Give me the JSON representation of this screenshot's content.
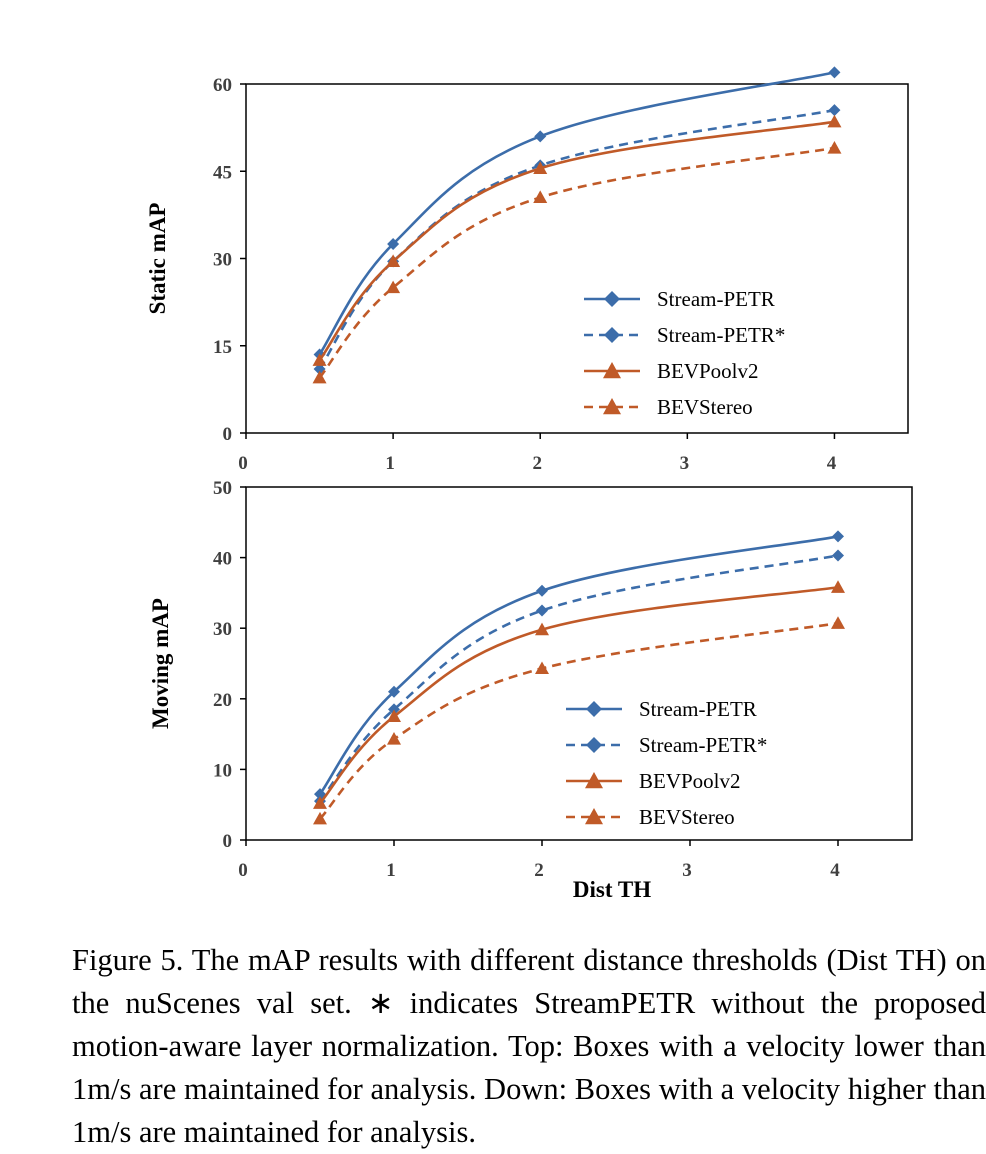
{
  "chart_data": [
    {
      "type": "line",
      "ylabel": "Static mAP",
      "xlabel": "",
      "xlim": [
        0,
        4.5
      ],
      "ylim": [
        0,
        60
      ],
      "xticks": [
        0,
        1,
        2,
        3,
        4
      ],
      "yticks": [
        0,
        15,
        30,
        45,
        60
      ],
      "legend_position": "bottom-right",
      "series": [
        {
          "name": "Stream-PETR",
          "x": [
            0.5,
            1,
            2,
            4
          ],
          "values": [
            13.5,
            32.5,
            51,
            62
          ],
          "color": "#3C6DAA",
          "marker": "diamond",
          "dashed": false
        },
        {
          "name": "Stream-PETR*",
          "x": [
            0.5,
            1,
            2,
            4
          ],
          "values": [
            11,
            29.5,
            46,
            55.5
          ],
          "color": "#3C6DAA",
          "marker": "diamond",
          "dashed": true
        },
        {
          "name": "BEVPoolv2",
          "x": [
            0.5,
            1,
            2,
            4
          ],
          "values": [
            12.5,
            29.5,
            45.5,
            53.5
          ],
          "color": "#C05A28",
          "marker": "triangle",
          "dashed": false
        },
        {
          "name": "BEVStereo",
          "x": [
            0.5,
            1,
            2,
            4
          ],
          "values": [
            9.5,
            25,
            40.5,
            49
          ],
          "color": "#C05A28",
          "marker": "triangle",
          "dashed": true
        }
      ]
    },
    {
      "type": "line",
      "ylabel": "Moving mAP",
      "xlabel": "Dist TH",
      "xlim": [
        0,
        4.5
      ],
      "ylim": [
        0,
        50
      ],
      "xticks": [
        0,
        1,
        2,
        3,
        4
      ],
      "yticks": [
        0,
        10,
        20,
        30,
        40,
        50
      ],
      "legend_position": "bottom-right",
      "series": [
        {
          "name": "Stream-PETR",
          "x": [
            0.5,
            1,
            2,
            4
          ],
          "values": [
            6.5,
            21,
            35.3,
            43
          ],
          "color": "#3C6DAA",
          "marker": "diamond",
          "dashed": false
        },
        {
          "name": "Stream-PETR*",
          "x": [
            0.5,
            1,
            2,
            4
          ],
          "values": [
            5.5,
            18.5,
            32.5,
            40.3
          ],
          "color": "#3C6DAA",
          "marker": "diamond",
          "dashed": true
        },
        {
          "name": "BEVPoolv2",
          "x": [
            0.5,
            1,
            2,
            4
          ],
          "values": [
            5.2,
            17.5,
            29.8,
            35.8
          ],
          "color": "#C05A28",
          "marker": "triangle",
          "dashed": false
        },
        {
          "name": "BEVStereo",
          "x": [
            0.5,
            1,
            2,
            4
          ],
          "values": [
            3,
            14.3,
            24.3,
            30.7
          ],
          "color": "#C05A28",
          "marker": "triangle",
          "dashed": true
        }
      ]
    }
  ],
  "caption": "Figure 5. The mAP results with different distance thresholds (Dist TH) on the nuScenes val set.  ∗ indicates StreamPETR without the proposed motion-aware layer normalization. Top: Boxes with a velocity lower than 1m/s are maintained for analysis.  Down: Boxes with a velocity higher than 1m/s are maintained for analysis."
}
